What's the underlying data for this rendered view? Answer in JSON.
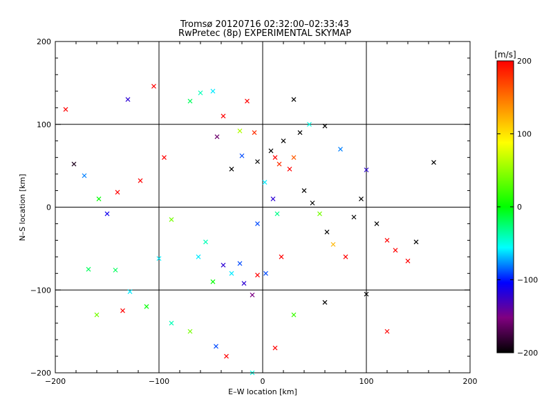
{
  "chart_data": {
    "type": "scatter",
    "title": "Tromsø 20120716 02:32:00–02:33:43",
    "subtitle": "RwPretec (8p) EXPERIMENTAL SKYMAP",
    "xlabel": "E–W location [km]",
    "ylabel": "N–S location [km]",
    "xlim": [
      -200,
      200
    ],
    "ylim": [
      -200,
      200
    ],
    "xticks": [
      -200,
      -100,
      0,
      100,
      200
    ],
    "yticks": [
      -200,
      -100,
      0,
      100,
      200
    ],
    "grid": true,
    "colorbar": {
      "label": "[m/s]",
      "range": [
        -200,
        200
      ],
      "ticks": [
        200,
        100,
        0,
        -100,
        -200
      ],
      "colors": [
        "#ff0000",
        "#ff8000",
        "#ffff00",
        "#00ff00",
        "#00ffff",
        "#0000ff",
        "#800080",
        "#000000"
      ]
    },
    "series": [
      {
        "marker": "x",
        "points": [
          [
            -190,
            118,
            200
          ],
          [
            -182,
            52,
            -190
          ],
          [
            -172,
            38,
            -80
          ],
          [
            -158,
            10,
            0
          ],
          [
            -150,
            -8,
            -110
          ],
          [
            -142,
            -76,
            -20
          ],
          [
            -128,
            -102,
            -60
          ],
          [
            -105,
            146,
            200
          ],
          [
            -88,
            -15,
            40
          ],
          [
            -70,
            128,
            -20
          ],
          [
            -60,
            138,
            -40
          ],
          [
            -48,
            140,
            -60
          ],
          [
            -44,
            85,
            -160
          ],
          [
            -38,
            110,
            200
          ],
          [
            -30,
            46,
            -200
          ],
          [
            -22,
            92,
            60
          ],
          [
            -20,
            62,
            -90
          ],
          [
            -15,
            128,
            200
          ],
          [
            -8,
            90,
            180
          ],
          [
            -5,
            55,
            -200
          ],
          [
            -62,
            -60,
            -60
          ],
          [
            -55,
            -42,
            -40
          ],
          [
            -48,
            -90,
            0
          ],
          [
            -38,
            -70,
            -120
          ],
          [
            -30,
            -80,
            -60
          ],
          [
            -22,
            -68,
            -90
          ],
          [
            -18,
            -92,
            -120
          ],
          [
            -10,
            -106,
            -150
          ],
          [
            -5,
            -82,
            200
          ],
          [
            3,
            -80,
            -90
          ],
          [
            8,
            68,
            -200
          ],
          [
            12,
            60,
            200
          ],
          [
            16,
            52,
            180
          ],
          [
            20,
            80,
            -200
          ],
          [
            26,
            46,
            200
          ],
          [
            30,
            60,
            160
          ],
          [
            36,
            90,
            -200
          ],
          [
            40,
            20,
            -200
          ],
          [
            48,
            5,
            -200
          ],
          [
            55,
            -8,
            40
          ],
          [
            62,
            -30,
            -200
          ],
          [
            68,
            -45,
            120
          ],
          [
            80,
            -60,
            200
          ],
          [
            88,
            -12,
            -200
          ],
          [
            95,
            10,
            -200
          ],
          [
            100,
            45,
            -120
          ],
          [
            110,
            -20,
            -200
          ],
          [
            120,
            -40,
            200
          ],
          [
            128,
            -52,
            200
          ],
          [
            140,
            -65,
            200
          ],
          [
            148,
            -42,
            -200
          ],
          [
            165,
            54,
            -200
          ],
          [
            120,
            -150,
            200
          ],
          [
            100,
            -105,
            -200
          ],
          [
            75,
            70,
            -80
          ],
          [
            60,
            98,
            -200
          ],
          [
            30,
            130,
            -200
          ],
          [
            45,
            100,
            -50
          ],
          [
            18,
            -60,
            200
          ],
          [
            60,
            -115,
            -200
          ],
          [
            -130,
            130,
            -120
          ],
          [
            -160,
            -130,
            40
          ],
          [
            -112,
            -120,
            0
          ],
          [
            -88,
            -140,
            -40
          ],
          [
            -70,
            -150,
            40
          ],
          [
            -45,
            -168,
            -90
          ],
          [
            -35,
            -180,
            200
          ],
          [
            -10,
            -200,
            -50
          ],
          [
            12,
            -170,
            200
          ],
          [
            30,
            -130,
            20
          ],
          [
            -95,
            60,
            200
          ],
          [
            -118,
            32,
            200
          ],
          [
            -140,
            18,
            200
          ],
          [
            -168,
            -75,
            -20
          ],
          [
            -100,
            -62,
            -60
          ],
          [
            -135,
            -125,
            200
          ],
          [
            10,
            10,
            -120
          ],
          [
            2,
            30,
            -60
          ],
          [
            -5,
            -20,
            -90
          ],
          [
            14,
            -8,
            -30
          ]
        ]
      }
    ]
  }
}
